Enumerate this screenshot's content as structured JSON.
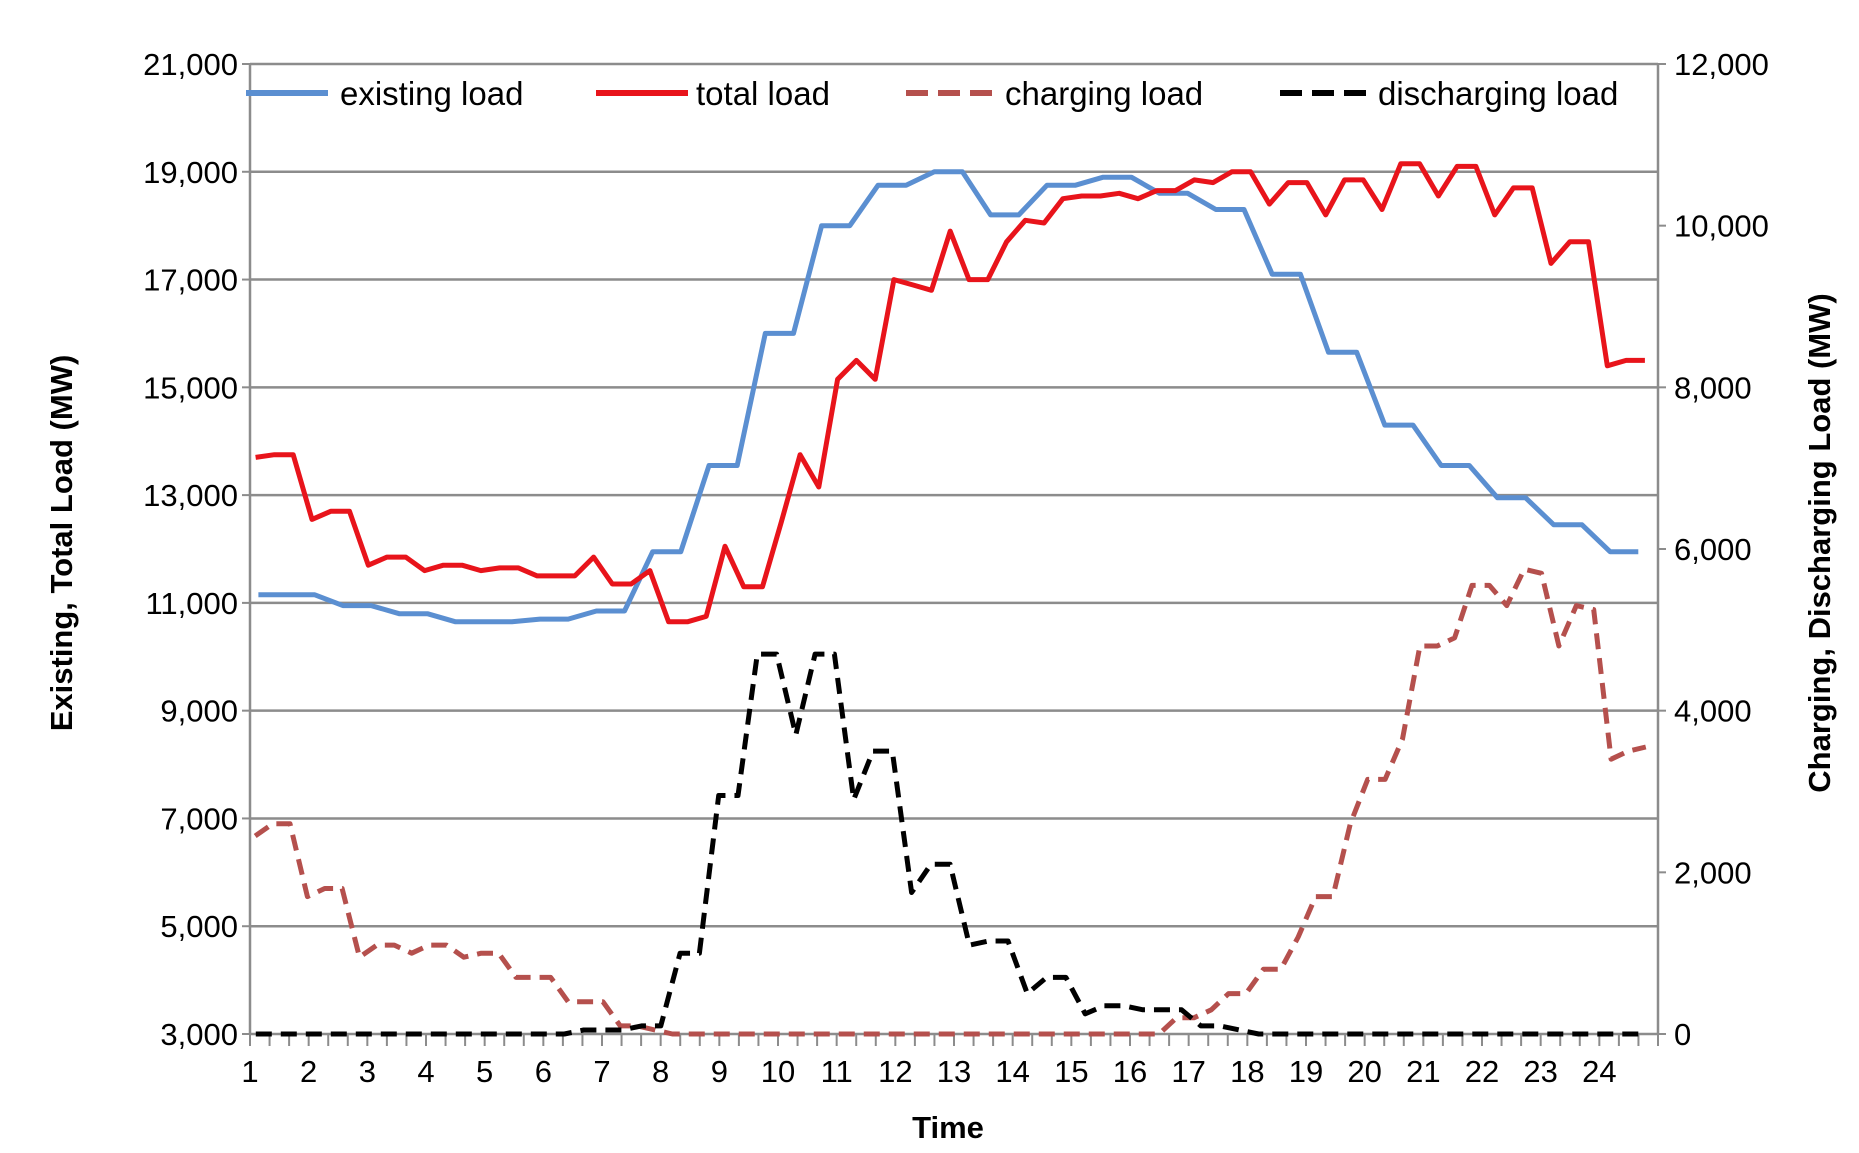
{
  "chart_data": {
    "type": "line",
    "title": "",
    "xlabel": "Time",
    "ylabel_left": "Existing, Total Load (MW)",
    "ylabel_right": "Charging, Discharging Load (MW)",
    "x_ticks": [
      "1",
      "2",
      "3",
      "4",
      "5",
      "6",
      "7",
      "8",
      "9",
      "10",
      "11",
      "12",
      "13",
      "14",
      "15",
      "16",
      "17",
      "18",
      "19",
      "20",
      "21",
      "22",
      "23",
      "24"
    ],
    "x_minor_per_major": 3,
    "left_axis": {
      "min": 3000,
      "max": 21000,
      "ticks": [
        3000,
        5000,
        7000,
        9000,
        11000,
        13000,
        15000,
        17000,
        19000,
        21000
      ],
      "tick_labels": [
        "3,000",
        "5,000",
        "7,000",
        "9,000",
        "11,000",
        "13,000",
        "15,000",
        "17,000",
        "19,000",
        "21,000"
      ]
    },
    "right_axis": {
      "min": 0,
      "max": 12000,
      "ticks": [
        0,
        2000,
        4000,
        6000,
        8000,
        10000,
        12000
      ],
      "tick_labels": [
        "0",
        "2,000",
        "4,000",
        "6,000",
        "8,000",
        "10,000",
        "12,000"
      ]
    },
    "grid": true,
    "legend_position": "top",
    "series": [
      {
        "name": "existing load",
        "axis": "left",
        "color": "#5b8fd1",
        "dash": false,
        "values": [
          11150,
          11150,
          11150,
          10950,
          10950,
          10800,
          10800,
          10650,
          10650,
          10650,
          10700,
          10700,
          10850,
          10850,
          11950,
          11950,
          13550,
          13550,
          16000,
          16000,
          18000,
          18000,
          18750,
          18750,
          19000,
          19000,
          18200,
          18200,
          18750,
          18750,
          18900,
          18900,
          18600,
          18600,
          18300,
          18300,
          17100,
          17100,
          15650,
          15650,
          14300,
          14300,
          13550,
          13550,
          12950,
          12950,
          12450,
          12450,
          11950,
          11950
        ]
      },
      {
        "name": "total load",
        "axis": "left",
        "color": "#e8141b",
        "dash": false,
        "values": [
          13700,
          13750,
          13750,
          12550,
          12700,
          12700,
          11700,
          11850,
          11850,
          11600,
          11700,
          11700,
          11600,
          11650,
          11650,
          11500,
          11500,
          11500,
          11850,
          11350,
          11350,
          11600,
          10650,
          10650,
          10750,
          12050,
          11300,
          11300,
          12500,
          13750,
          13150,
          15150,
          15500,
          15150,
          17000,
          16900,
          16800,
          17900,
          17000,
          17000,
          17700,
          18100,
          18050,
          18500,
          18550,
          18550,
          18600,
          18500,
          18650,
          18650,
          18850,
          18800,
          19000,
          19000,
          18400,
          18800,
          18800,
          18200,
          18850,
          18850,
          18300,
          19150,
          19150,
          18550,
          19100,
          19100,
          18200,
          18700,
          18700,
          17300,
          17700,
          17700,
          15400,
          15500,
          15500
        ]
      },
      {
        "name": "charging load",
        "axis": "right",
        "color": "#b5504d",
        "dash": true,
        "values": [
          2450,
          2600,
          2600,
          1700,
          1800,
          1800,
          950,
          1100,
          1100,
          1000,
          1100,
          1100,
          950,
          1000,
          1000,
          700,
          700,
          700,
          400,
          400,
          400,
          100,
          100,
          50,
          0,
          0,
          0,
          0,
          0,
          0,
          0,
          0,
          0,
          0,
          0,
          0,
          0,
          0,
          0,
          0,
          0,
          0,
          0,
          0,
          0,
          0,
          0,
          0,
          0,
          0,
          0,
          0,
          0,
          200,
          200,
          300,
          500,
          500,
          800,
          800,
          1200,
          1700,
          1700,
          2600,
          3150,
          3150,
          3650,
          4800,
          4800,
          4900,
          5550,
          5550,
          5300,
          5750,
          5700,
          4800,
          5300,
          5250,
          3400,
          3500,
          3550
        ]
      },
      {
        "name": "discharging load",
        "axis": "right",
        "color": "#000000",
        "dash": true,
        "values": [
          0,
          0,
          0,
          0,
          0,
          0,
          0,
          0,
          0,
          0,
          0,
          0,
          0,
          0,
          0,
          0,
          0,
          50,
          50,
          50,
          100,
          100,
          1000,
          1000,
          2950,
          2950,
          4700,
          4700,
          3700,
          4700,
          4700,
          2900,
          3500,
          3500,
          1750,
          2100,
          2100,
          1100,
          1150,
          1150,
          500,
          700,
          700,
          250,
          350,
          350,
          300,
          300,
          300,
          100,
          100,
          50,
          0,
          0,
          0,
          0,
          0,
          0,
          0,
          0,
          0,
          0,
          0,
          0,
          0,
          0,
          0,
          0,
          0,
          0,
          0,
          0,
          0
        ]
      }
    ]
  }
}
